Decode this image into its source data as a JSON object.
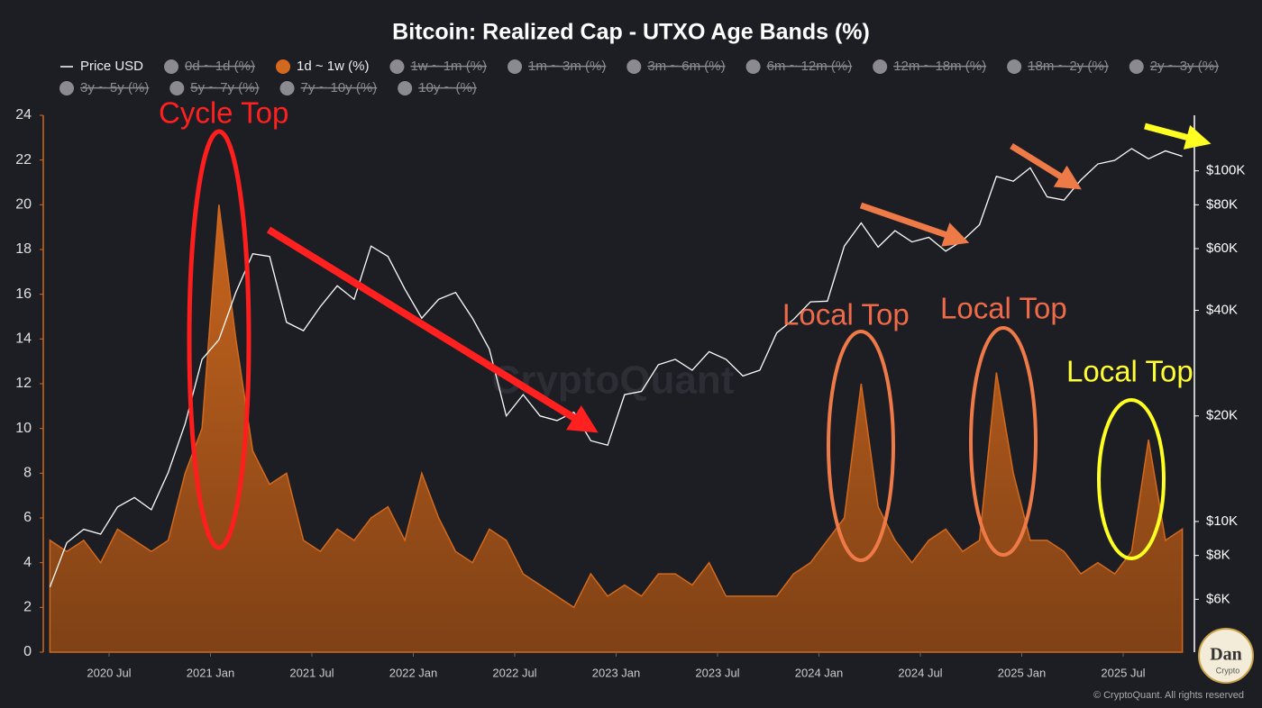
{
  "chart_data": {
    "type": "combo",
    "title": "Bitcoin: Realized Cap - UTXO Age Bands (%)",
    "x": [
      "2020-03",
      "2020-04",
      "2020-05",
      "2020-06",
      "2020-07",
      "2020-08",
      "2020-09",
      "2020-10",
      "2020-11",
      "2020-12",
      "2021-01",
      "2021-02",
      "2021-03",
      "2021-04",
      "2021-05",
      "2021-06",
      "2021-07",
      "2021-08",
      "2021-09",
      "2021-10",
      "2021-11",
      "2021-12",
      "2022-01",
      "2022-02",
      "2022-03",
      "2022-04",
      "2022-05",
      "2022-06",
      "2022-07",
      "2022-08",
      "2022-09",
      "2022-10",
      "2022-11",
      "2022-12",
      "2023-01",
      "2023-02",
      "2023-03",
      "2023-04",
      "2023-05",
      "2023-06",
      "2023-07",
      "2023-08",
      "2023-09",
      "2023-10",
      "2023-11",
      "2023-12",
      "2024-01",
      "2024-02",
      "2024-03",
      "2024-04",
      "2024-05",
      "2024-06",
      "2024-07",
      "2024-08",
      "2024-09",
      "2024-10",
      "2024-11",
      "2024-12",
      "2025-01",
      "2025-02",
      "2025-03",
      "2025-04",
      "2025-05",
      "2025-06",
      "2025-07",
      "2025-08",
      "2025-09",
      "2025-10"
    ],
    "series": [
      {
        "name": "Price USD",
        "type": "line",
        "axis": "y2",
        "color": "#ffffff",
        "values": [
          6500,
          8700,
          9500,
          9200,
          11000,
          11700,
          10800,
          13800,
          19000,
          29000,
          33000,
          45000,
          58000,
          57000,
          37000,
          35000,
          41000,
          47000,
          43000,
          61000,
          57000,
          46000,
          38000,
          43000,
          45000,
          38000,
          31000,
          20000,
          23000,
          20000,
          19400,
          20500,
          17000,
          16500,
          23000,
          23500,
          28000,
          29000,
          27000,
          30500,
          29000,
          26000,
          27000,
          34500,
          37700,
          42300,
          42500,
          61000,
          71000,
          60600,
          67500,
          62700,
          64600,
          59000,
          63300,
          70200,
          96400,
          93400,
          102000,
          84300,
          82500,
          94200,
          104600,
          107100,
          115700,
          108200,
          114000,
          110000
        ]
      },
      {
        "name": "1d ~ 1w (%)",
        "type": "area",
        "color": "#d2691e",
        "values": [
          5,
          4.5,
          5,
          4,
          5.5,
          5,
          4.5,
          5,
          8,
          10,
          20,
          14,
          9,
          7.5,
          8,
          5,
          4.5,
          5.5,
          5,
          6,
          6.5,
          5,
          8,
          6,
          4.5,
          4,
          5.5,
          5,
          3.5,
          3,
          2.5,
          2,
          3.5,
          2.5,
          3,
          2.5,
          3.5,
          3.5,
          3,
          4,
          2.5,
          2.5,
          2.5,
          2.5,
          3.5,
          4,
          5,
          6,
          12,
          6.5,
          5,
          4,
          5,
          5.5,
          4.5,
          5,
          12.5,
          8,
          5,
          5,
          4.5,
          3.5,
          4,
          3.5,
          4.5,
          9.5,
          5,
          5.5
        ]
      }
    ],
    "hidden_series": [
      "0d ~ 1d (%)",
      "1w ~ 1m (%)",
      "1m ~ 3m (%)",
      "3m ~ 6m (%)",
      "6m ~ 12m (%)",
      "12m ~ 18m (%)",
      "18m ~ 2y (%)",
      "2y ~ 3y (%)",
      "3y ~ 5y (%)",
      "5y ~ 7y (%)",
      "7y ~ 10y (%)",
      "10y ~ (%)"
    ],
    "hidden_color": "#8a8a90",
    "ylim": [
      0,
      24
    ],
    "yticks": [
      0,
      2,
      4,
      6,
      8,
      10,
      12,
      14,
      16,
      18,
      20,
      22,
      24
    ],
    "y2lim": [
      4240,
      144000
    ],
    "y2_log": true,
    "y2ticks": [
      {
        "value": 6000,
        "label": "$6K"
      },
      {
        "value": 8000,
        "label": "$8K"
      },
      {
        "value": 10000,
        "label": "$10K"
      },
      {
        "value": 20000,
        "label": "$20K"
      },
      {
        "value": 40000,
        "label": "$40K"
      },
      {
        "value": 60000,
        "label": "$60K"
      },
      {
        "value": 80000,
        "label": "$80K"
      },
      {
        "value": 100000,
        "label": "$100K"
      }
    ],
    "xticks": [
      {
        "value": "2020-07",
        "label": "2020 Jul"
      },
      {
        "value": "2021-01",
        "label": "2021 Jan"
      },
      {
        "value": "2021-07",
        "label": "2021 Jul"
      },
      {
        "value": "2022-01",
        "label": "2022 Jan"
      },
      {
        "value": "2022-07",
        "label": "2022 Jul"
      },
      {
        "value": "2023-01",
        "label": "2023 Jan"
      },
      {
        "value": "2023-07",
        "label": "2023 Jul"
      },
      {
        "value": "2024-01",
        "label": "2024 Jan"
      },
      {
        "value": "2024-07",
        "label": "2024 Jul"
      },
      {
        "value": "2025-01",
        "label": "2025 Jan"
      },
      {
        "value": "2025-07",
        "label": "2025 Jul"
      }
    ],
    "annotations": [
      "Cycle Top",
      "Local Top",
      "Local Top",
      "Local Top"
    ],
    "watermark": "CryptoQuant",
    "footer": "© CryptoQuant. All rights reserved",
    "logo_text": [
      "Dan",
      "Crypto"
    ]
  }
}
